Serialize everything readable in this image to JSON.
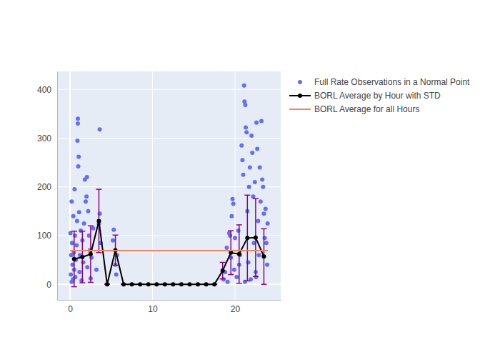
{
  "chart_data": {
    "type": "scatter",
    "xlim": [
      -1.56,
      25.54
    ],
    "ylim": [
      -32,
      437
    ],
    "xticks": [
      0,
      10,
      20
    ],
    "yticks": [
      0,
      100,
      200,
      300,
      400
    ],
    "grid": true,
    "legend": "right",
    "series": [
      {
        "name": "Full Rate Observations in a Normal Point",
        "type": "scatter",
        "marker": "circle",
        "color": "#636efa",
        "x": [
          0.05,
          0.1,
          0.15,
          0.2,
          0.2,
          0.25,
          0.3,
          0.35,
          0.4,
          0.45,
          0.5,
          0.55,
          0.6,
          0.65,
          0.7,
          0.8,
          0.85,
          0.9,
          0.95,
          0.95,
          1.0,
          1.05,
          1.1,
          1.15,
          1.2,
          1.3,
          1.4,
          1.5,
          1.6,
          1.7,
          1.8,
          1.9,
          2.0,
          2.05,
          2.1,
          2.2,
          2.3,
          2.4,
          2.5,
          2.6,
          2.8,
          3.2,
          3.5,
          3.6,
          3.6,
          3.7,
          5.2,
          5.3,
          5.5,
          5.6,
          5.7,
          18.6,
          18.8,
          19.0,
          19.1,
          19.3,
          19.5,
          19.6,
          19.7,
          19.8,
          19.9,
          20.0,
          20.2,
          20.4,
          20.6,
          20.8,
          20.9,
          21.0,
          21.1,
          21.15,
          21.25,
          21.3,
          21.4,
          21.5,
          21.6,
          21.7,
          21.8,
          21.9,
          22.0,
          22.1,
          22.2,
          22.3,
          22.4,
          22.5,
          22.6,
          22.7,
          22.8,
          22.9,
          23.0,
          23.1,
          23.2,
          23.3,
          23.4,
          23.5,
          23.6,
          23.7,
          23.8,
          23.9,
          23.95,
          21.2,
          22.55,
          20.5,
          19.4
        ],
        "values": [
          105,
          20,
          60,
          170,
          5,
          85,
          40,
          10,
          140,
          65,
          30,
          195,
          100,
          15,
          50,
          80,
          130,
          295,
          340,
          330,
          242,
          262,
          148,
          25,
          60,
          110,
          8,
          90,
          45,
          125,
          215,
          170,
          180,
          220,
          35,
          150,
          100,
          70,
          12,
          55,
          115,
          30,
          125,
          318,
          145,
          85,
          90,
          112,
          40,
          20,
          60,
          10,
          25,
          75,
          5,
          105,
          55,
          140,
          175,
          165,
          30,
          95,
          15,
          110,
          60,
          285,
          255,
          225,
          408,
          375,
          368,
          322,
          312,
          150,
          45,
          200,
          240,
          10,
          305,
          270,
          180,
          85,
          210,
          25,
          332,
          278,
          130,
          60,
          240,
          170,
          335,
          215,
          200,
          145,
          95,
          155,
          85,
          40,
          125,
          5,
          15,
          40,
          100
        ]
      },
      {
        "name": "BORL Average by Hour with STD",
        "type": "line",
        "marker": "circle",
        "color": "#000000",
        "x": [
          0.5,
          1.5,
          2.5,
          3.5,
          4.5,
          5.5,
          6.5,
          7.5,
          8.5,
          9.5,
          10.5,
          11.5,
          12.5,
          13.5,
          14.5,
          15.5,
          16.5,
          17.5,
          18.5,
          19.5,
          20.5,
          21.5,
          22.5,
          23.5
        ],
        "values": [
          52,
          56,
          62,
          130,
          0,
          70,
          0,
          0,
          0,
          0,
          0,
          0,
          0,
          0,
          0,
          0,
          0,
          0,
          28,
          65,
          62,
          95,
          96,
          57
        ],
        "errors": [
          57,
          53,
          58,
          65,
          0,
          31,
          0,
          0,
          0,
          0,
          0,
          0,
          0,
          0,
          0,
          0,
          0,
          0,
          17,
          45,
          60,
          88,
          80,
          57
        ]
      },
      {
        "name": "BORL Average for all Hours",
        "type": "line",
        "color": "#f4845f",
        "x": [
          0,
          24
        ],
        "values": [
          69,
          69
        ]
      }
    ]
  }
}
